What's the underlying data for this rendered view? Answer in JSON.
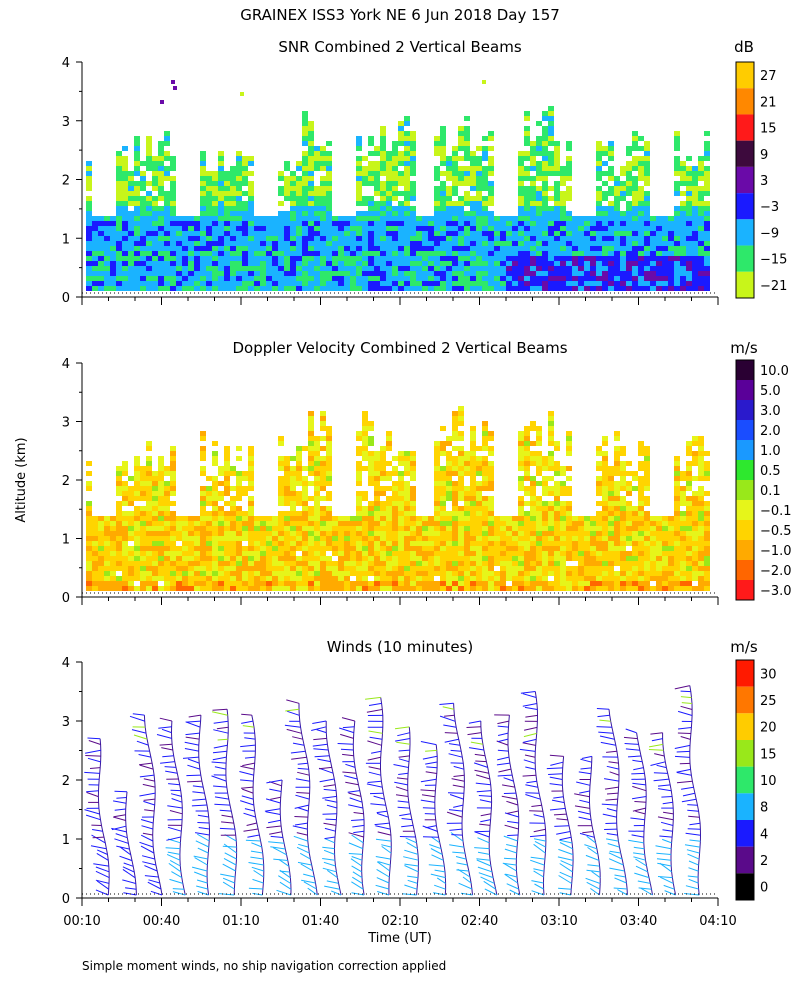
{
  "figure": {
    "title": "GRAINEX ISS3 York NE   6 Jun 2018 Day 157",
    "footnote": "Simple moment winds, no ship navigation correction applied",
    "ylabel": "Altitude (km)",
    "xlabel": "Time (UT)",
    "time_ticks": [
      "00:10",
      "00:40",
      "01:10",
      "01:40",
      "02:10",
      "02:40",
      "03:10",
      "03:40",
      "04:10"
    ]
  },
  "chart_data": [
    {
      "type": "heatmap",
      "title": "SNR Combined 2 Vertical Beams",
      "unit": "dB",
      "xlabel": "Time (UT)",
      "ylabel": "Altitude (km)",
      "xlim": [
        "00:10",
        "04:10"
      ],
      "ylim": [
        0,
        4
      ],
      "yticks": [
        "0",
        "1",
        "2",
        "3",
        "4"
      ],
      "colorbar": {
        "labels": [
          "27",
          "21",
          "15",
          "9",
          "3",
          "−3",
          "−9",
          "−15",
          "−21"
        ],
        "colors": [
          "#ffcc00",
          "#ff8800",
          "#ff1a1a",
          "#3d0a3d",
          "#6a0aa8",
          "#1a1aff",
          "#1ab3ff",
          "#2ee86a",
          "#c8f51a"
        ]
      },
      "gap_columns": [
        5,
        12,
        20,
        28,
        36,
        44,
        53,
        60
      ]
    },
    {
      "type": "heatmap",
      "title": "Doppler Velocity Combined 2 Vertical Beams",
      "unit": "m/s",
      "xlabel": "Time (UT)",
      "ylabel": "Altitude (km)",
      "xlim": [
        "00:10",
        "04:10"
      ],
      "ylim": [
        0,
        4
      ],
      "yticks": [
        "0",
        "1",
        "2",
        "3",
        "4"
      ],
      "colorbar": {
        "labels": [
          "10.0",
          "5.0",
          "3.0",
          "2.0",
          "1.0",
          "0.5",
          "0.1",
          "−0.1",
          "−0.5",
          "−1.0",
          "−2.0",
          "−3.0"
        ],
        "colors": [
          "#2a0033",
          "#5a0099",
          "#2a1acc",
          "#1a4dff",
          "#1a99ff",
          "#2ee82e",
          "#99e81a",
          "#e6f51a",
          "#ffd400",
          "#ffaa00",
          "#ff6600",
          "#ff1a1a"
        ]
      }
    },
    {
      "type": "wind_barbs",
      "title": "Winds (10 minutes)",
      "unit": "m/s",
      "xlabel": "Time (UT)",
      "ylabel": "Altitude (km)",
      "xlim": [
        "00:10",
        "04:10"
      ],
      "ylim": [
        0,
        4
      ],
      "yticks": [
        "0",
        "1",
        "2",
        "3",
        "4"
      ],
      "colorbar": {
        "labels": [
          "30",
          "25",
          "20",
          "15",
          "10",
          "8",
          "4",
          "2",
          "0"
        ],
        "colors": [
          "#ff1a00",
          "#ff7700",
          "#ffcc00",
          "#99e81a",
          "#2ee86a",
          "#1ab3ff",
          "#1a1aff",
          "#5a0a8a",
          "#000000"
        ]
      },
      "profiles": [
        {
          "time": "00:10",
          "top_km": 2.7,
          "speed_low": 6,
          "speed_high": 4
        },
        {
          "time": "00:20",
          "top_km": 1.8,
          "speed_low": 5,
          "speed_high": 4
        },
        {
          "time": "00:30",
          "top_km": 3.1,
          "speed_low": 6,
          "speed_high": 5
        },
        {
          "time": "00:40",
          "top_km": 3.0,
          "speed_low": 9,
          "speed_high": 5
        },
        {
          "time": "00:50",
          "top_km": 3.1,
          "speed_low": 9,
          "speed_high": 5
        },
        {
          "time": "01:00",
          "top_km": 3.2,
          "speed_low": 9,
          "speed_high": 5
        },
        {
          "time": "01:10",
          "top_km": 3.1,
          "speed_low": 9,
          "speed_high": 5
        },
        {
          "time": "01:20",
          "top_km": 2.0,
          "speed_low": 9,
          "speed_high": 5
        },
        {
          "time": "01:30",
          "top_km": 3.3,
          "speed_low": 10,
          "speed_high": 5
        },
        {
          "time": "01:40",
          "top_km": 3.0,
          "speed_low": 10,
          "speed_high": 5
        },
        {
          "time": "01:50",
          "top_km": 3.0,
          "speed_low": 10,
          "speed_high": 5
        },
        {
          "time": "02:00",
          "top_km": 3.4,
          "speed_low": 11,
          "speed_high": 5
        },
        {
          "time": "02:10",
          "top_km": 2.9,
          "speed_low": 10,
          "speed_high": 5
        },
        {
          "time": "02:20",
          "top_km": 2.6,
          "speed_low": 11,
          "speed_high": 5
        },
        {
          "time": "02:30",
          "top_km": 3.3,
          "speed_low": 11,
          "speed_high": 5
        },
        {
          "time": "02:40",
          "top_km": 3.0,
          "speed_low": 10,
          "speed_high": 5
        },
        {
          "time": "02:50",
          "top_km": 3.1,
          "speed_low": 12,
          "speed_high": 7
        },
        {
          "time": "03:00",
          "top_km": 3.5,
          "speed_low": 12,
          "speed_high": 6
        },
        {
          "time": "03:10",
          "top_km": 2.4,
          "speed_low": 12,
          "speed_high": 6
        },
        {
          "time": "03:20",
          "top_km": 2.4,
          "speed_low": 12,
          "speed_high": 6
        },
        {
          "time": "03:30",
          "top_km": 3.2,
          "speed_low": 12,
          "speed_high": 6
        },
        {
          "time": "03:40",
          "top_km": 2.8,
          "speed_low": 12,
          "speed_high": 6
        },
        {
          "time": "03:50",
          "top_km": 2.8,
          "speed_low": 12,
          "speed_high": 6
        },
        {
          "time": "04:00",
          "top_km": 3.6,
          "speed_low": 12,
          "speed_high": 6
        }
      ]
    }
  ]
}
